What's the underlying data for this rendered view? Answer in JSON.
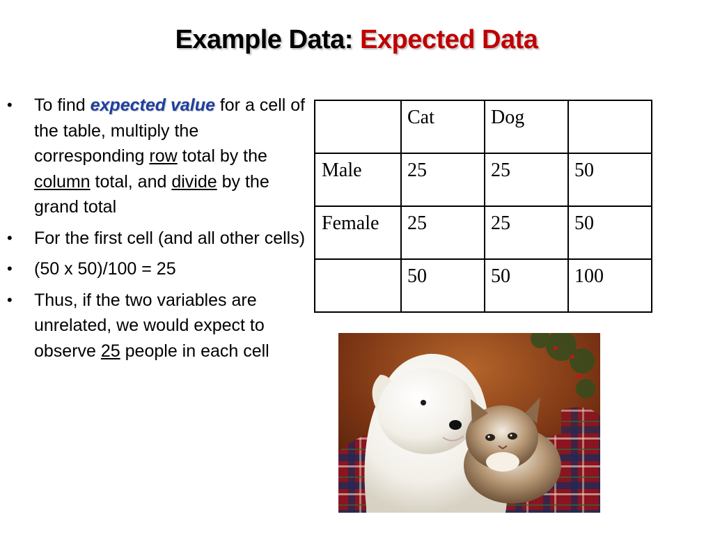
{
  "title": {
    "part1": "Example Data: ",
    "part2": "Expected Data"
  },
  "bullets": [
    {
      "pre": "To find ",
      "emph": "expected value",
      "mid1": " for a cell of the table, multiply the corresponding ",
      "u1": "row",
      "mid2": " total by the ",
      "u2": "column",
      "mid3": " total, and ",
      "u3": "divide",
      "post": " by the grand total"
    },
    {
      "text": "For the first cell (and all other cells)"
    },
    {
      "text": "(50 x 50)/100 = 25"
    },
    {
      "pre": "Thus, if the two variables are unrelated, we would expect to observe ",
      "u": "25",
      "post": " people in each cell"
    }
  ],
  "table": {
    "rows": [
      [
        "",
        "Cat",
        "Dog",
        ""
      ],
      [
        "Male",
        "25",
        "25",
        "50"
      ],
      [
        "Female",
        "25",
        "25",
        "50"
      ],
      [
        "",
        "50",
        "50",
        "100"
      ]
    ]
  },
  "colors": {
    "accent": "#c00000",
    "emphasis": "#1f3f9f"
  }
}
